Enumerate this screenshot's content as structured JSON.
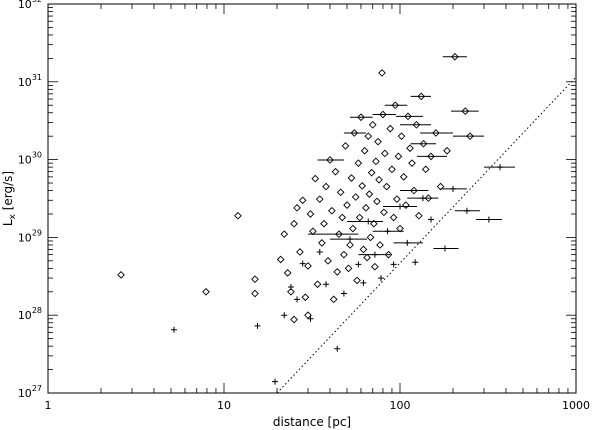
{
  "chart_data": {
    "type": "scatter",
    "xlabel": "distance [pc]",
    "ylabel_main": "L",
    "ylabel_sub": "x",
    "ylabel_rest": " [erg/s]",
    "x_scale": "log",
    "y_scale": "log",
    "xlim": [
      1,
      1000
    ],
    "ylim": [
      1e+27,
      1e+32
    ],
    "x_ticks": [
      {
        "value": 1,
        "label": "1"
      },
      {
        "value": 10,
        "label": "10"
      },
      {
        "value": 100,
        "label": "100"
      },
      {
        "value": 1000,
        "label": "1000"
      }
    ],
    "y_ticks": [
      {
        "value": 1e+27,
        "base": "10",
        "exp": "27"
      },
      {
        "value": 1e+28,
        "base": "10",
        "exp": "28"
      },
      {
        "value": 1e+29,
        "base": "10",
        "exp": "29"
      },
      {
        "value": 1e+30,
        "base": "10",
        "exp": "30"
      },
      {
        "value": 1e+31,
        "base": "10",
        "exp": "31"
      },
      {
        "value": 1e+32,
        "base": "10",
        "exp": "32"
      }
    ],
    "grid": false,
    "reference_line": {
      "style": "dotted",
      "x": [
        20,
        1000
      ],
      "y": [
        1e+27,
        1.15e+31
      ]
    },
    "series": [
      {
        "marker": "diamond",
        "points": [
          {
            "x": 2.6,
            "y": 3.3e+28
          },
          {
            "x": 7.9,
            "y": 2e+28
          },
          {
            "x": 12.0,
            "y": 1.9e+29
          },
          {
            "x": 15.0,
            "y": 2.9e+28
          },
          {
            "x": 15.0,
            "y": 1.9e+28
          },
          {
            "x": 21,
            "y": 5.2e+28
          },
          {
            "x": 22,
            "y": 1.1e+29
          },
          {
            "x": 23,
            "y": 3.5e+28
          },
          {
            "x": 24,
            "y": 2e+28
          },
          {
            "x": 25,
            "y": 8.8e+27
          },
          {
            "x": 25,
            "y": 1.5e+29
          },
          {
            "x": 26,
            "y": 2.4e+29
          },
          {
            "x": 27,
            "y": 6.5e+28
          },
          {
            "x": 28,
            "y": 3e+29
          },
          {
            "x": 29,
            "y": 1.7e+28
          },
          {
            "x": 30,
            "y": 1e+28
          },
          {
            "x": 30,
            "y": 4.3e+28
          },
          {
            "x": 31,
            "y": 2e+29
          },
          {
            "x": 32,
            "y": 1.2e+29
          },
          {
            "x": 33,
            "y": 5.7e+29
          },
          {
            "x": 34,
            "y": 2.5e+28
          },
          {
            "x": 35,
            "y": 3.1e+29
          },
          {
            "x": 36,
            "y": 8.5e+28
          },
          {
            "x": 37,
            "y": 1.5e+29
          },
          {
            "x": 38,
            "y": 4.5e+29
          },
          {
            "x": 39,
            "y": 5e+28
          },
          {
            "x": 40,
            "y": 9.9e+29
          },
          {
            "x": 41,
            "y": 2.2e+29
          },
          {
            "x": 42,
            "y": 1.6e+28
          },
          {
            "x": 43,
            "y": 7e+29
          },
          {
            "x": 44,
            "y": 3.6e+28
          },
          {
            "x": 45,
            "y": 1.1e+29
          },
          {
            "x": 46,
            "y": 3.8e+29
          },
          {
            "x": 47,
            "y": 1.8e+29
          },
          {
            "x": 48,
            "y": 6e+28
          },
          {
            "x": 49,
            "y": 1.5e+30
          },
          {
            "x": 50,
            "y": 2.6e+29
          },
          {
            "x": 51,
            "y": 4e+28
          },
          {
            "x": 52,
            "y": 8e+28
          },
          {
            "x": 53,
            "y": 5.8e+29
          },
          {
            "x": 54,
            "y": 1.3e+29
          },
          {
            "x": 55,
            "y": 2.2e+30
          },
          {
            "x": 56,
            "y": 3.3e+29
          },
          {
            "x": 57,
            "y": 2.8e+28
          },
          {
            "x": 58,
            "y": 9e+29
          },
          {
            "x": 59,
            "y": 1.8e+29
          },
          {
            "x": 60,
            "y": 3.5e+30
          },
          {
            "x": 61,
            "y": 4.6e+29
          },
          {
            "x": 62,
            "y": 7e+28
          },
          {
            "x": 63,
            "y": 1.3e+30
          },
          {
            "x": 64,
            "y": 2.4e+29
          },
          {
            "x": 65,
            "y": 5.5e+28
          },
          {
            "x": 66,
            "y": 2e+30
          },
          {
            "x": 67,
            "y": 3.6e+29
          },
          {
            "x": 68,
            "y": 1e+29
          },
          {
            "x": 69,
            "y": 6.8e+29
          },
          {
            "x": 70,
            "y": 2.8e+30
          },
          {
            "x": 71,
            "y": 1.5e+29
          },
          {
            "x": 72,
            "y": 4.2e+28
          },
          {
            "x": 73,
            "y": 9.5e+29
          },
          {
            "x": 74,
            "y": 2.9e+29
          },
          {
            "x": 75,
            "y": 1.7e+30
          },
          {
            "x": 76,
            "y": 5.5e+29
          },
          {
            "x": 77,
            "y": 8e+28
          },
          {
            "x": 79,
            "y": 1.3e+31
          },
          {
            "x": 80,
            "y": 3.8e+30
          },
          {
            "x": 81,
            "y": 2.1e+29
          },
          {
            "x": 82,
            "y": 1.2e+30
          },
          {
            "x": 84,
            "y": 4.5e+29
          },
          {
            "x": 86,
            "y": 6e+28
          },
          {
            "x": 88,
            "y": 2.5e+30
          },
          {
            "x": 90,
            "y": 7.5e+29
          },
          {
            "x": 92,
            "y": 1.8e+29
          },
          {
            "x": 94,
            "y": 5e+30
          },
          {
            "x": 96,
            "y": 3.1e+29
          },
          {
            "x": 98,
            "y": 1.1e+30
          },
          {
            "x": 100,
            "y": 1.3e+29
          },
          {
            "x": 102,
            "y": 2e+30
          },
          {
            "x": 105,
            "y": 6e+29
          },
          {
            "x": 108,
            "y": 2.6e+29
          },
          {
            "x": 111,
            "y": 3.6e+30
          },
          {
            "x": 114,
            "y": 1.4e+30
          },
          {
            "x": 117,
            "y": 9e+29
          },
          {
            "x": 120,
            "y": 4e+29
          },
          {
            "x": 124,
            "y": 2.8e+30
          },
          {
            "x": 128,
            "y": 1.9e+29
          },
          {
            "x": 132,
            "y": 6.5e+30
          },
          {
            "x": 136,
            "y": 1.6e+30
          },
          {
            "x": 140,
            "y": 7.5e+29
          },
          {
            "x": 145,
            "y": 3.2e+29
          },
          {
            "x": 150,
            "y": 1.1e+30
          },
          {
            "x": 160,
            "y": 2.2e+30
          },
          {
            "x": 170,
            "y": 4.5e+29
          },
          {
            "x": 185,
            "y": 1.3e+30
          },
          {
            "x": 205,
            "y": 2.1e+31
          },
          {
            "x": 235,
            "y": 4.2e+30
          },
          {
            "x": 250,
            "y": 2e+30
          }
        ]
      },
      {
        "marker": "plus",
        "points": [
          {
            "x": 5.2,
            "y": 6.5e+27
          },
          {
            "x": 15.5,
            "y": 7.3e+27
          },
          {
            "x": 19.5,
            "y": 1.4e+27
          },
          {
            "x": 22,
            "y": 1e+28
          },
          {
            "x": 24,
            "y": 2.3e+28
          },
          {
            "x": 26,
            "y": 1.6e+28
          },
          {
            "x": 28,
            "y": 4.6e+28
          },
          {
            "x": 31,
            "y": 9e+27
          },
          {
            "x": 35,
            "y": 6.5e+28
          },
          {
            "x": 38,
            "y": 2.5e+28
          },
          {
            "x": 44,
            "y": 3.7e+27
          },
          {
            "x": 48,
            "y": 1.9e+28
          },
          {
            "x": 52,
            "y": 9.5e+28
          },
          {
            "x": 58,
            "y": 4.5e+28
          },
          {
            "x": 62,
            "y": 2.6e+28
          },
          {
            "x": 66,
            "y": 1.6e+29
          },
          {
            "x": 72,
            "y": 6e+28
          },
          {
            "x": 78,
            "y": 3e+28
          },
          {
            "x": 85,
            "y": 1.2e+29
          },
          {
            "x": 92,
            "y": 4.5e+28
          },
          {
            "x": 100,
            "y": 2.5e+29
          },
          {
            "x": 110,
            "y": 8.5e+28
          },
          {
            "x": 122,
            "y": 4.8e+28
          },
          {
            "x": 135,
            "y": 3.2e+29
          },
          {
            "x": 150,
            "y": 1.7e+29
          },
          {
            "x": 180,
            "y": 7.2e+28
          },
          {
            "x": 200,
            "y": 4.2e+29
          },
          {
            "x": 240,
            "y": 2.2e+29
          },
          {
            "x": 320,
            "y": 1.7e+29
          },
          {
            "x": 370,
            "y": 8e+29
          }
        ]
      }
    ],
    "error_bars": [
      {
        "x": 205,
        "y": 2.1e+31,
        "xlo": 175,
        "xhi": 240
      },
      {
        "x": 235,
        "y": 4.2e+30,
        "xlo": 195,
        "xhi": 280
      },
      {
        "x": 250,
        "y": 2e+30,
        "xlo": 200,
        "xhi": 300
      },
      {
        "x": 320,
        "y": 1.7e+29,
        "xlo": 270,
        "xhi": 380
      },
      {
        "x": 370,
        "y": 8e+29,
        "xlo": 300,
        "xhi": 450
      },
      {
        "x": 180,
        "y": 7.2e+28,
        "xlo": 155,
        "xhi": 215
      },
      {
        "x": 150,
        "y": 1.1e+30,
        "xlo": 125,
        "xhi": 185
      },
      {
        "x": 160,
        "y": 2.2e+30,
        "xlo": 130,
        "xhi": 200
      },
      {
        "x": 132,
        "y": 6.5e+30,
        "xlo": 115,
        "xhi": 150
      },
      {
        "x": 111,
        "y": 3.6e+30,
        "xlo": 95,
        "xhi": 135
      },
      {
        "x": 124,
        "y": 2.8e+30,
        "xlo": 100,
        "xhi": 150
      },
      {
        "x": 80,
        "y": 3.8e+30,
        "xlo": 70,
        "xhi": 95
      },
      {
        "x": 94,
        "y": 5e+30,
        "xlo": 82,
        "xhi": 110
      },
      {
        "x": 55,
        "y": 2.2e+30,
        "xlo": 48,
        "xhi": 64
      },
      {
        "x": 136,
        "y": 1.6e+30,
        "xlo": 115,
        "xhi": 160
      },
      {
        "x": 200,
        "y": 4.2e+29,
        "xlo": 170,
        "xhi": 240
      },
      {
        "x": 135,
        "y": 3.2e+29,
        "xlo": 110,
        "xhi": 165
      },
      {
        "x": 100,
        "y": 2.5e+29,
        "xlo": 80,
        "xhi": 125
      },
      {
        "x": 85,
        "y": 1.2e+29,
        "xlo": 70,
        "xhi": 105
      },
      {
        "x": 66,
        "y": 1.6e+29,
        "xlo": 50,
        "xhi": 80
      },
      {
        "x": 52,
        "y": 9.5e+28,
        "xlo": 40,
        "xhi": 65
      },
      {
        "x": 72,
        "y": 6e+28,
        "xlo": 58,
        "xhi": 88
      },
      {
        "x": 110,
        "y": 8.5e+28,
        "xlo": 92,
        "xhi": 135
      },
      {
        "x": 240,
        "y": 2.2e+29,
        "xlo": 205,
        "xhi": 285
      },
      {
        "x": 60,
        "y": 3.5e+30,
        "xlo": 52,
        "xhi": 70
      },
      {
        "x": 120,
        "y": 4e+29,
        "xlo": 100,
        "xhi": 145
      },
      {
        "x": 40,
        "y": 9.9e+29,
        "xlo": 34,
        "xhi": 48
      },
      {
        "x": 45,
        "y": 1.1e+29,
        "xlo": 30,
        "xhi": 58
      }
    ]
  }
}
